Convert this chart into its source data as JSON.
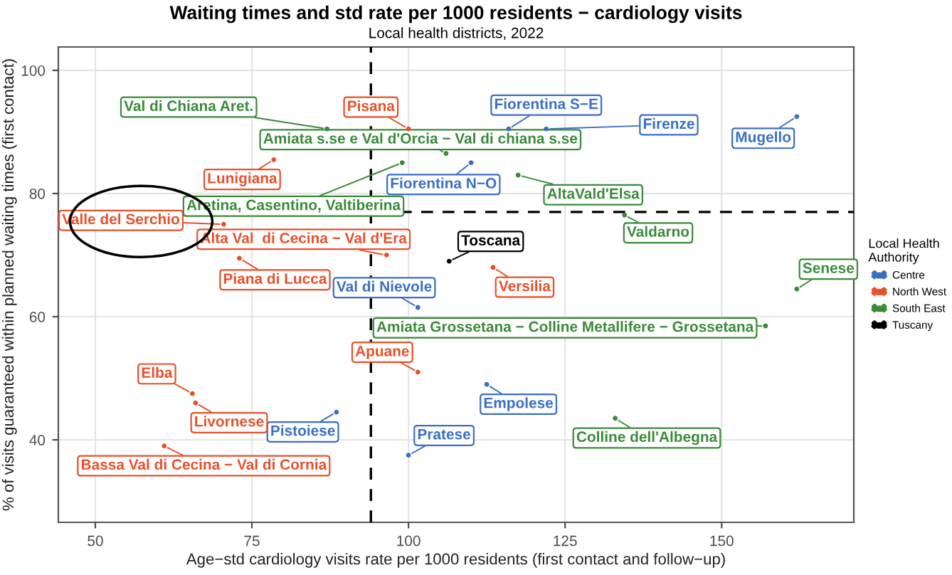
{
  "chart_data": {
    "type": "scatter",
    "title": "Waiting times and std rate per 1000 residents − cardiology visits",
    "subtitle": "Local health districts, 2022",
    "xlabel": "Age−std cardiology visits rate per 1000 residents (first contact and follow−up)",
    "ylabel": "% of visits guaranteed within planned waiting times (first contact)",
    "legend_title": "Local Health\nAuthority",
    "legend": "right",
    "grid": true,
    "marker": "circle",
    "xlim": [
      44.1,
      171.1
    ],
    "xticks": [
      50,
      75,
      100,
      125,
      150
    ],
    "ylim": [
      26.6,
      103.8
    ],
    "yticks": [
      40,
      60,
      80,
      100
    ],
    "ref_lines": [
      {
        "axis": "x",
        "value": 94,
        "color": "#000000",
        "line_style": "dashed"
      },
      {
        "axis": "y",
        "value": 77,
        "color": "#000000",
        "line_style": "dashed"
      }
    ],
    "series": [
      {
        "name": "Centre",
        "color": "#3a6fc4",
        "x": [
          116,
          122,
          162,
          110,
          101.5,
          112.5,
          88.5,
          100
        ],
        "values": [
          90.5,
          90.5,
          92.5,
          85,
          61.5,
          49,
          44.5,
          37.5
        ]
      },
      {
        "name": "North West",
        "color": "#e8502a",
        "x": [
          100,
          78.5,
          70.5,
          96.5,
          73,
          113.5,
          101.5,
          65.5,
          66,
          61
        ],
        "values": [
          90.5,
          85.5,
          75,
          70,
          69.5,
          68,
          51,
          47.5,
          46,
          39
        ]
      },
      {
        "name": "South East",
        "color": "#3a8a3a",
        "x": [
          87,
          106,
          117.5,
          99,
          134.5,
          162,
          157,
          133
        ],
        "values": [
          90.5,
          86.5,
          83,
          85,
          76.5,
          64.5,
          58.5,
          43.5
        ]
      },
      {
        "name": "Tuscany",
        "color": "#000000",
        "x": [
          106.5
        ],
        "values": [
          69
        ]
      }
    ],
    "annotations": [
      {
        "text": "Fiorentina S−E",
        "x": 116,
        "y": 90.5
      },
      {
        "text": "Firenze",
        "x": 122,
        "y": 90.5
      },
      {
        "text": "Mugello",
        "x": 162,
        "y": 92.5
      },
      {
        "text": "Fiorentina N−O",
        "x": 110,
        "y": 85
      },
      {
        "text": "Val di Nievole",
        "x": 101.5,
        "y": 61.5
      },
      {
        "text": "Empolese",
        "x": 112.5,
        "y": 49
      },
      {
        "text": "Pistoiese",
        "x": 88.5,
        "y": 44.5
      },
      {
        "text": "Pratese",
        "x": 100,
        "y": 37.5
      },
      {
        "text": "Pisana",
        "x": 100,
        "y": 90.5
      },
      {
        "text": "Lunigiana",
        "x": 78.5,
        "y": 85.5
      },
      {
        "text": "Valle del Serchio",
        "x": 70.5,
        "y": 75
      },
      {
        "text": "Alta Val  di Cecina − Val d'Era",
        "x": 96.5,
        "y": 70
      },
      {
        "text": "Piana di Lucca",
        "x": 73,
        "y": 69.5
      },
      {
        "text": "Versilia",
        "x": 113.5,
        "y": 68
      },
      {
        "text": "Apuane",
        "x": 101.5,
        "y": 51
      },
      {
        "text": "Elba",
        "x": 65.5,
        "y": 47.5
      },
      {
        "text": "Livornese",
        "x": 66,
        "y": 46
      },
      {
        "text": "Bassa Val di Cecina − Val di Cornia",
        "x": 61,
        "y": 39
      },
      {
        "text": "Val di Chiana Aret.",
        "x": 87,
        "y": 90.5
      },
      {
        "text": "Amiata s.se e Val d'Orcia − Val di chiana s.se",
        "x": 106,
        "y": 86.5
      },
      {
        "text": "AltaVald'Elsa",
        "x": 117.5,
        "y": 83
      },
      {
        "text": "Aretina, Casentino, Valtiberina",
        "x": 99,
        "y": 85
      },
      {
        "text": "Valdarno",
        "x": 134.5,
        "y": 76.5
      },
      {
        "text": "Senese",
        "x": 162,
        "y": 64.5
      },
      {
        "text": "Amiata Grossetana − Colline Metallifere − Grossetana",
        "x": 157,
        "y": 58.5
      },
      {
        "text": "Colline dell'Albegna",
        "x": 133,
        "y": 43.5
      },
      {
        "text": "Toscana",
        "x": 106.5,
        "y": 69
      }
    ]
  }
}
